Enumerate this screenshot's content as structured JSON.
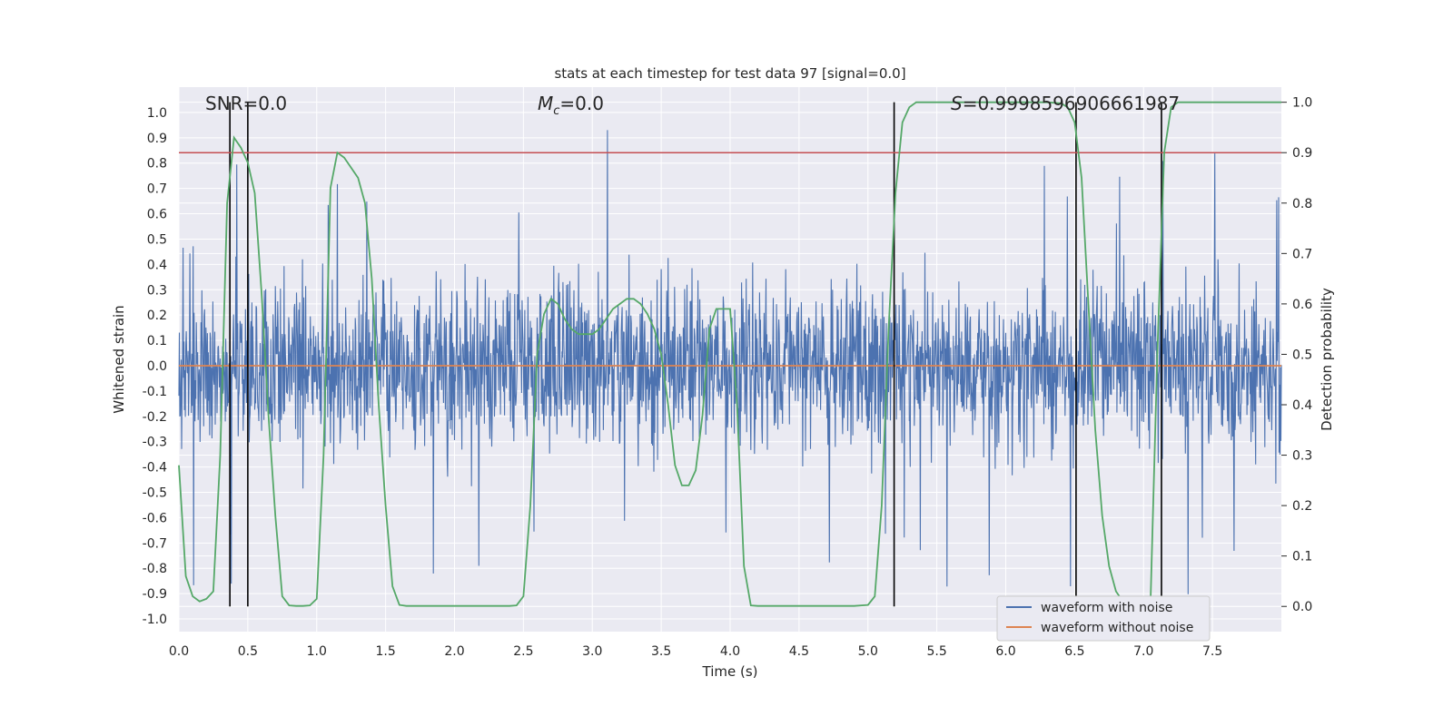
{
  "chart_data": {
    "type": "line",
    "title": "stats at each timestep for test data 97 [signal=0.0]",
    "xlabel": "Time (s)",
    "ylabel_left": "Whitened strain",
    "ylabel_right": "Detection probability",
    "xlim": [
      0.0,
      8.0
    ],
    "ylim_left": [
      -1.05,
      1.1
    ],
    "ylim_right": [
      -0.05,
      1.03
    ],
    "x_ticks": [
      "0.0",
      "0.5",
      "1.0",
      "1.5",
      "2.0",
      "2.5",
      "3.0",
      "3.5",
      "4.0",
      "4.5",
      "5.0",
      "5.5",
      "6.0",
      "6.5",
      "7.0",
      "7.5"
    ],
    "y_left_ticks": [
      "-1.0",
      "-0.9",
      "-0.8",
      "-0.7",
      "-0.6",
      "-0.5",
      "-0.4",
      "-0.3",
      "-0.2",
      "-0.1",
      "0.0",
      "0.1",
      "0.2",
      "0.3",
      "0.4",
      "0.5",
      "0.6",
      "0.7",
      "0.8",
      "0.9",
      "1.0"
    ],
    "y_right_ticks": [
      "0.0",
      "0.1",
      "0.2",
      "0.3",
      "0.4",
      "0.5",
      "0.6",
      "0.7",
      "0.8",
      "0.9",
      "1.0"
    ],
    "annotations": {
      "snr": "SNR=0.0",
      "mc_symbol": "M",
      "mc_subscript": "c",
      "mc_value": "=0.0",
      "s_symbol": "S",
      "s_value": "=0.9998596906661987"
    },
    "threshold": 0.9,
    "vertical_lines": [
      0.37,
      0.5,
      5.19,
      6.51,
      7.13
    ],
    "legend": [
      "waveform with noise",
      "waveform without noise"
    ],
    "colors": {
      "noise": "#4c72b0",
      "clean": "#dd8452",
      "probability": "#55a868",
      "threshold": "#c44e52",
      "vline": "#000000",
      "plot_bg": "#eaeaf2",
      "grid": "#ffffff"
    },
    "series": [
      {
        "name": "waveform with noise",
        "description_values": "noise, envelope approx -0.9 to 1.0"
      },
      {
        "name": "waveform without noise",
        "values_constant": 0.0
      },
      {
        "name": "detection probability",
        "x": [
          0.0,
          0.05,
          0.1,
          0.15,
          0.2,
          0.25,
          0.3,
          0.35,
          0.4,
          0.45,
          0.5,
          0.55,
          0.6,
          0.65,
          0.7,
          0.75,
          0.8,
          0.85,
          0.9,
          0.95,
          1.0,
          1.05,
          1.1,
          1.15,
          1.2,
          1.25,
          1.3,
          1.35,
          1.4,
          1.45,
          1.5,
          1.55,
          1.6,
          1.65,
          1.7,
          1.8,
          1.9,
          2.0,
          2.1,
          2.2,
          2.3,
          2.4,
          2.45,
          2.5,
          2.55,
          2.6,
          2.65,
          2.7,
          2.75,
          2.8,
          2.85,
          2.9,
          2.95,
          3.0,
          3.05,
          3.1,
          3.15,
          3.2,
          3.25,
          3.3,
          3.35,
          3.4,
          3.45,
          3.5,
          3.55,
          3.6,
          3.65,
          3.7,
          3.75,
          3.8,
          3.85,
          3.9,
          3.95,
          4.0,
          4.05,
          4.1,
          4.15,
          4.2,
          4.3,
          4.4,
          4.5,
          4.6,
          4.7,
          4.8,
          4.9,
          5.0,
          5.05,
          5.1,
          5.15,
          5.2,
          5.25,
          5.3,
          5.35,
          5.4,
          5.5,
          6.0,
          6.3,
          6.4,
          6.45,
          6.5,
          6.55,
          6.6,
          6.65,
          6.7,
          6.75,
          6.8,
          6.85,
          6.9,
          6.95,
          7.0,
          7.05,
          7.1,
          7.15,
          7.2,
          7.25,
          7.3,
          7.5,
          8.0
        ],
        "y": [
          0.28,
          0.06,
          0.02,
          0.01,
          0.015,
          0.03,
          0.3,
          0.8,
          0.93,
          0.91,
          0.88,
          0.82,
          0.62,
          0.38,
          0.18,
          0.02,
          0.002,
          0.001,
          0.001,
          0.002,
          0.015,
          0.3,
          0.83,
          0.9,
          0.89,
          0.87,
          0.85,
          0.8,
          0.65,
          0.4,
          0.2,
          0.04,
          0.003,
          0.001,
          0.001,
          0.001,
          0.001,
          0.001,
          0.001,
          0.001,
          0.001,
          0.001,
          0.002,
          0.02,
          0.2,
          0.5,
          0.58,
          0.61,
          0.6,
          0.57,
          0.55,
          0.54,
          0.54,
          0.54,
          0.55,
          0.57,
          0.59,
          0.6,
          0.61,
          0.61,
          0.6,
          0.58,
          0.55,
          0.5,
          0.4,
          0.28,
          0.24,
          0.24,
          0.27,
          0.38,
          0.55,
          0.59,
          0.59,
          0.59,
          0.4,
          0.08,
          0.002,
          0.001,
          0.001,
          0.001,
          0.001,
          0.001,
          0.001,
          0.001,
          0.001,
          0.003,
          0.02,
          0.2,
          0.55,
          0.82,
          0.96,
          0.99,
          1.0,
          1.0,
          1.0,
          1.0,
          1.0,
          0.998,
          0.99,
          0.96,
          0.85,
          0.6,
          0.35,
          0.18,
          0.08,
          0.03,
          0.01,
          0.002,
          0.001,
          0.0,
          0.0,
          0.5,
          0.9,
          0.99,
          1.0,
          1.0,
          1.0,
          1.0
        ]
      }
    ]
  }
}
